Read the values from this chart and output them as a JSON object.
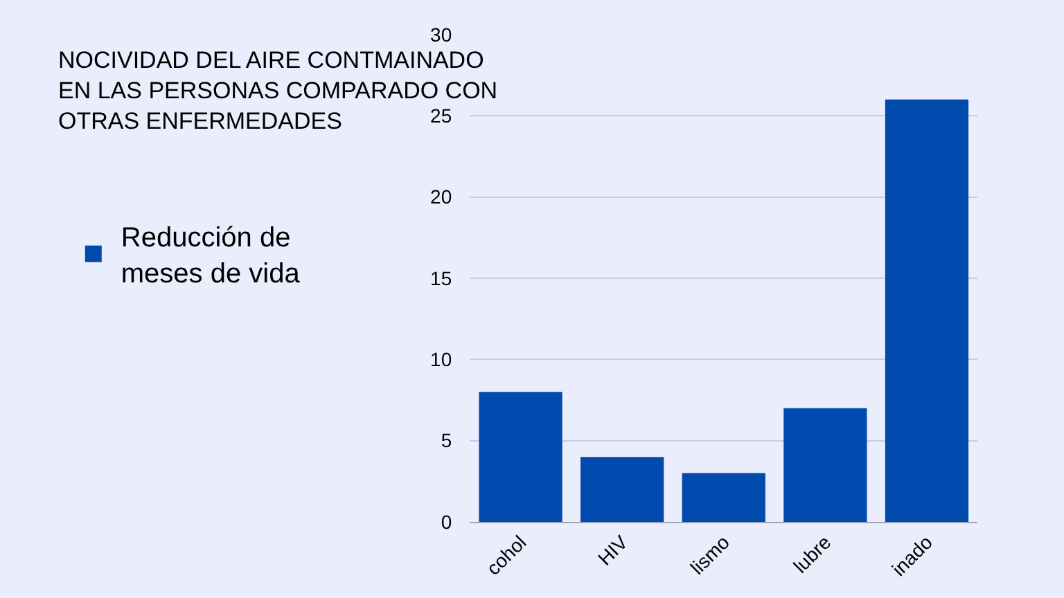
{
  "chart_data": {
    "type": "bar",
    "title": "NOCIVIDAD DEL AIRE CONTMAINADO EN LAS PERSONAS COMPARADO CON OTRAS ENFERMEDADES",
    "categories": [
      "cohol",
      "HIV",
      "lismo",
      "lubre",
      "inado"
    ],
    "series": [
      {
        "name": "Reducción de meses de vida",
        "color": "#004aad",
        "values": [
          8,
          4,
          3,
          7,
          26
        ]
      }
    ],
    "ylim": [
      0,
      30
    ],
    "yticks": [
      0,
      5,
      10,
      15,
      20,
      25,
      30
    ],
    "grid": "y",
    "legend": "left"
  }
}
